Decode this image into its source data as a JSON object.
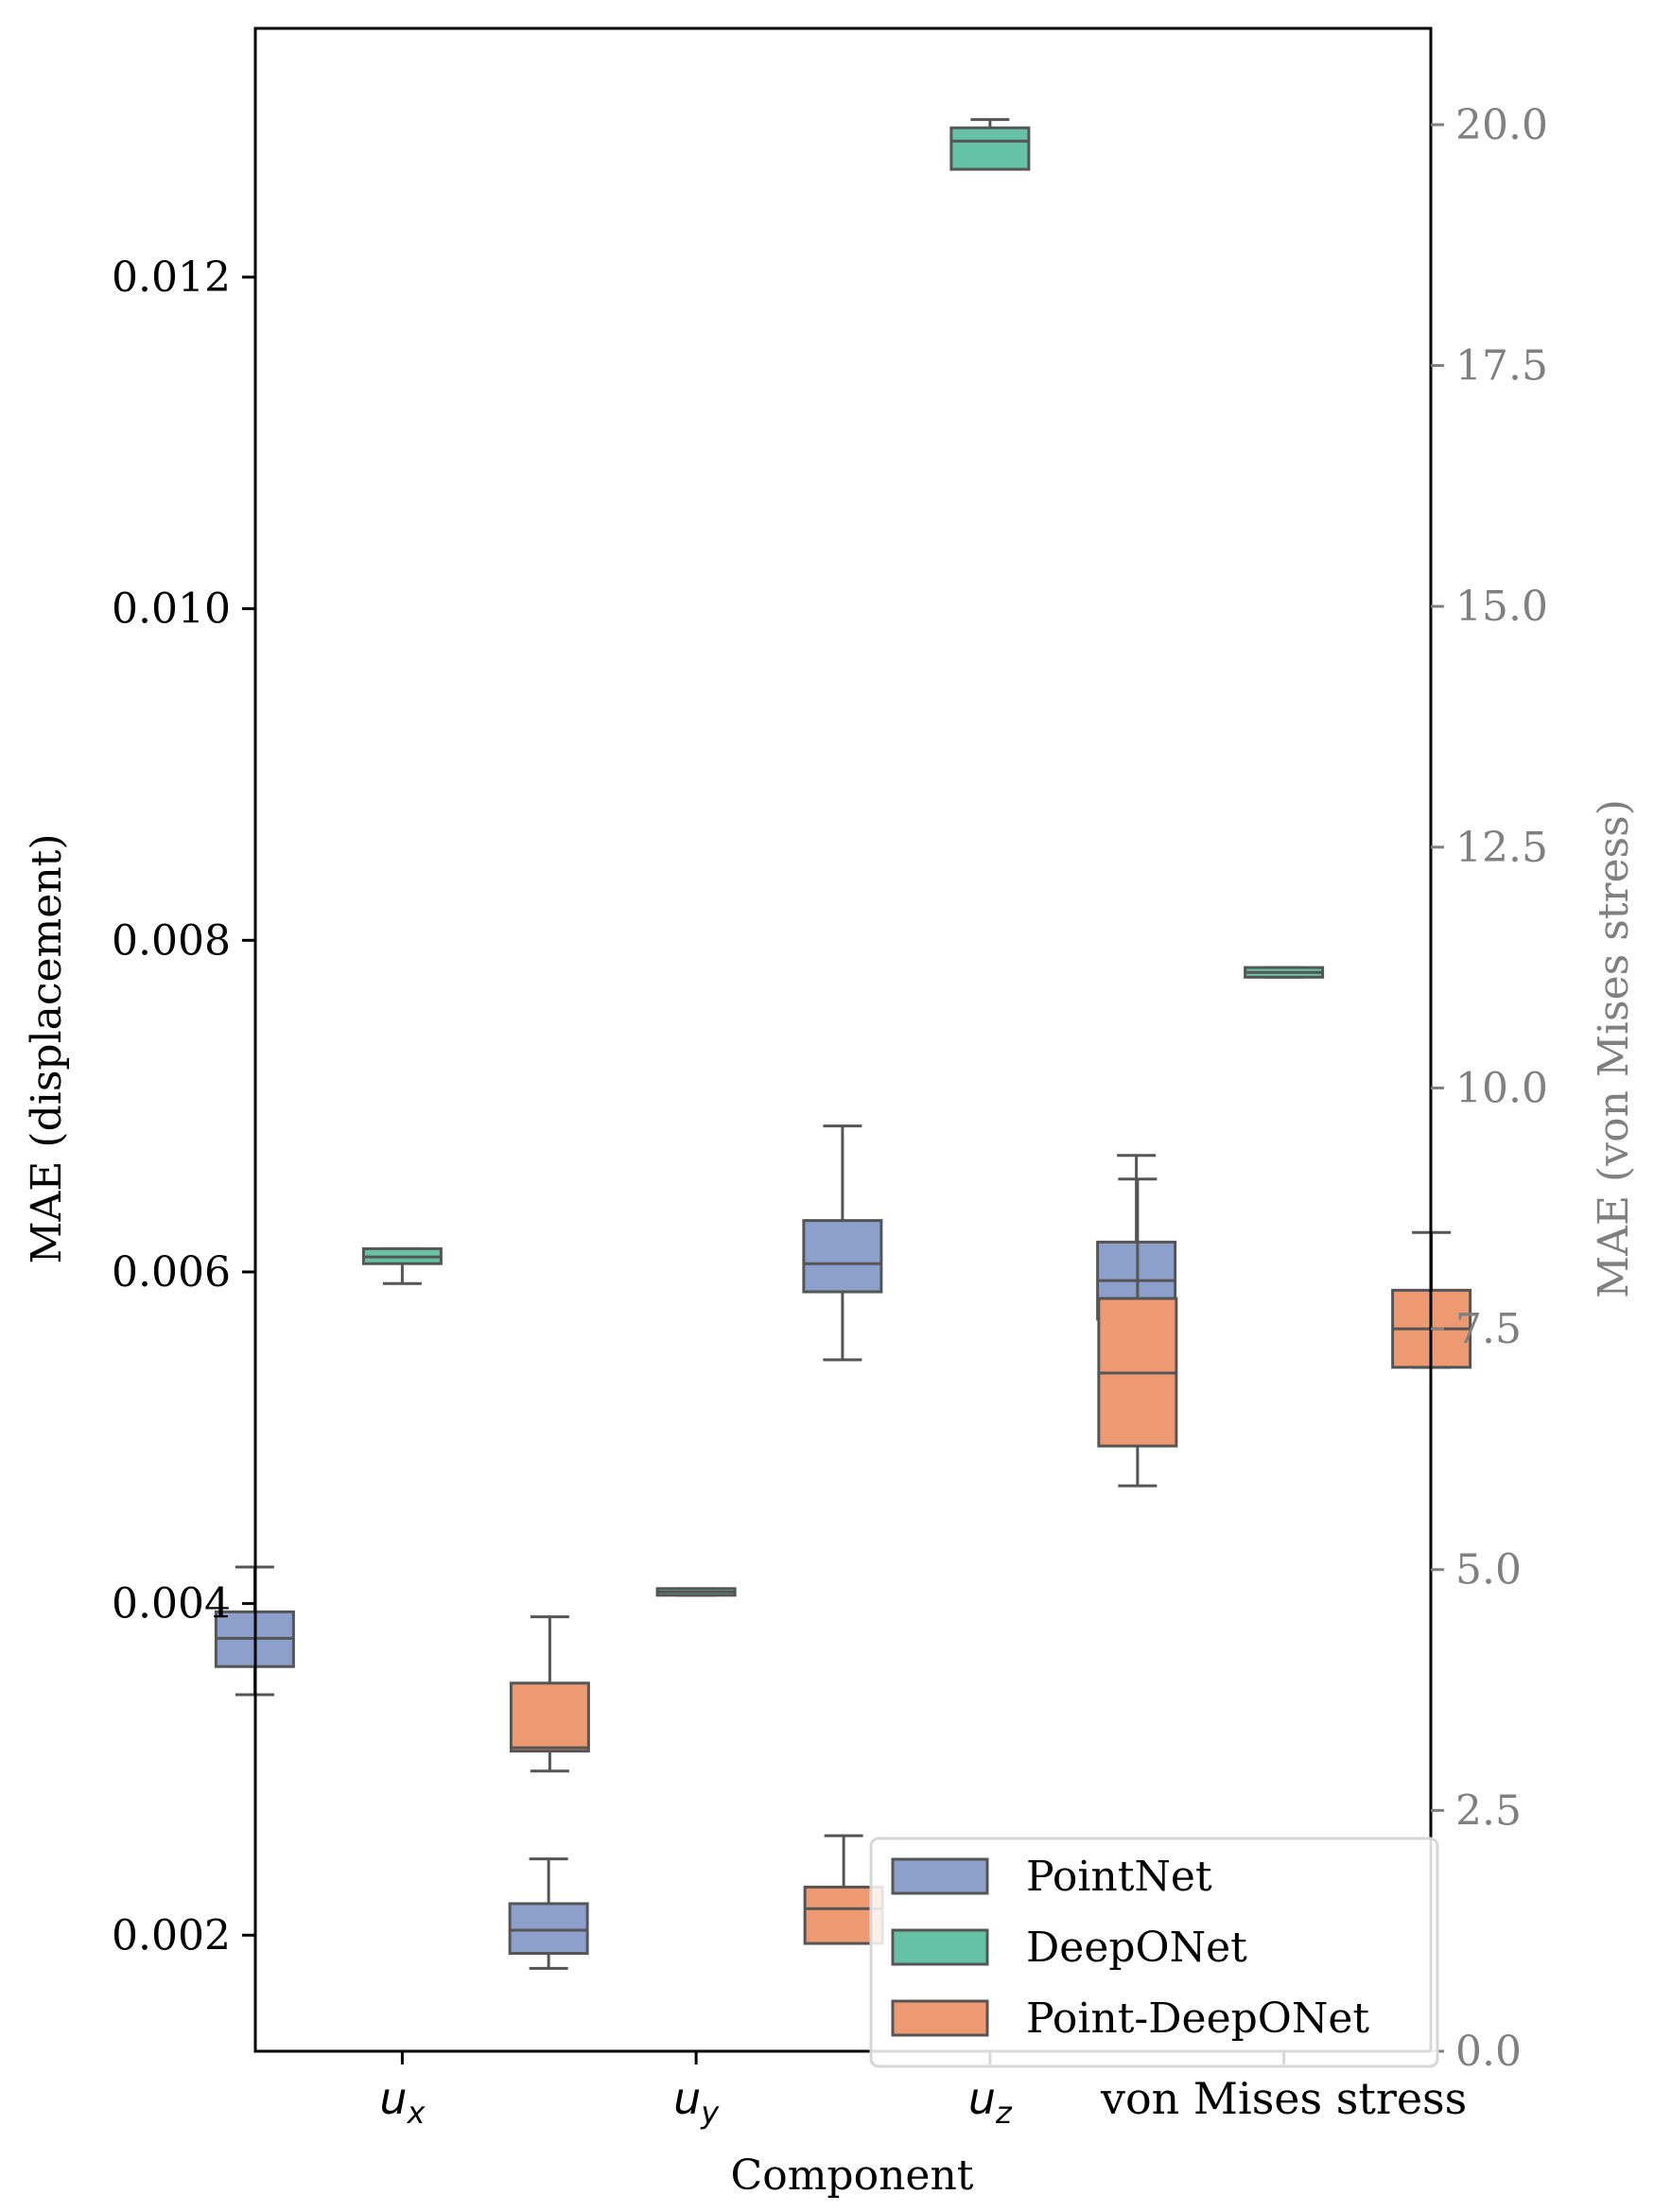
{
  "chart_data": {
    "type": "box",
    "xlabel": "Component",
    "ylabel_left": "MAE (displacement)",
    "ylabel_right": "MAE (von Mises stress)",
    "ylim_left": [
      0.0013,
      0.0135
    ],
    "ylim_right": [
      0.0,
      21.0
    ],
    "yticks_left": [
      "0.002",
      "0.004",
      "0.006",
      "0.008",
      "0.010",
      "0.012"
    ],
    "yticks_right": [
      "0.0",
      "2.5",
      "5.0",
      "7.5",
      "10.0",
      "12.5",
      "15.0",
      "17.5",
      "20.0"
    ],
    "categories": [
      {
        "main": "u",
        "sub": "x",
        "axis": "left"
      },
      {
        "main": "u",
        "sub": "y",
        "axis": "left"
      },
      {
        "main": "u",
        "sub": "z",
        "axis": "left"
      },
      {
        "main": "von Mises stress",
        "sub": "",
        "axis": "right"
      }
    ],
    "series": [
      {
        "name": "PointNet",
        "color": "#8da0cb",
        "boxes": [
          {
            "whisker_low": 0.00345,
            "q1": 0.00362,
            "median": 0.00379,
            "q3": 0.00395,
            "whisker_high": 0.00422
          },
          {
            "whisker_low": 0.0018,
            "q1": 0.00189,
            "median": 0.00203,
            "q3": 0.00219,
            "whisker_high": 0.00246
          },
          {
            "whisker_low": 0.00547,
            "q1": 0.00588,
            "median": 0.00605,
            "q3": 0.00631,
            "whisker_high": 0.00688
          },
          {
            "whisker_low": 7.4,
            "q1": 7.6,
            "median": 8.0,
            "q3": 8.4,
            "whisker_high": 9.3
          }
        ]
      },
      {
        "name": "DeepONet",
        "color": "#66c2a5",
        "boxes": [
          {
            "whisker_low": 0.00593,
            "q1": 0.00605,
            "median": 0.00609,
            "q3": 0.00614,
            "whisker_high": 0.00614
          },
          {
            "whisker_low": 0.00405,
            "q1": 0.00405,
            "median": 0.00407,
            "q3": 0.00409,
            "whisker_high": 0.00409
          },
          {
            "whisker_low": 0.01265,
            "q1": 0.01265,
            "median": 0.01282,
            "q3": 0.0129,
            "whisker_high": 0.01295
          },
          {
            "whisker_low": 11.15,
            "q1": 11.15,
            "median": 11.2,
            "q3": 11.25,
            "whisker_high": 11.25
          }
        ]
      },
      {
        "name": "Point-DeepONet",
        "color": "#ed9a73",
        "boxes": [
          {
            "whisker_low": 0.00299,
            "q1": 0.00311,
            "median": 0.00313,
            "q3": 0.00352,
            "whisker_high": 0.00392
          },
          {
            "whisker_low": 0.00195,
            "q1": 0.00195,
            "median": 0.00216,
            "q3": 0.00229,
            "whisker_high": 0.0026
          },
          {
            "whisker_low": 0.00471,
            "q1": 0.00495,
            "median": 0.00539,
            "q3": 0.00584,
            "whisker_high": 0.00656
          },
          {
            "whisker_low": 7.1,
            "q1": 7.1,
            "median": 7.5,
            "q3": 7.9,
            "whisker_high": 8.5
          }
        ]
      }
    ],
    "legend": {
      "location": "lower right",
      "entries": [
        "PointNet",
        "DeepONet",
        "Point-DeepONet"
      ]
    }
  }
}
